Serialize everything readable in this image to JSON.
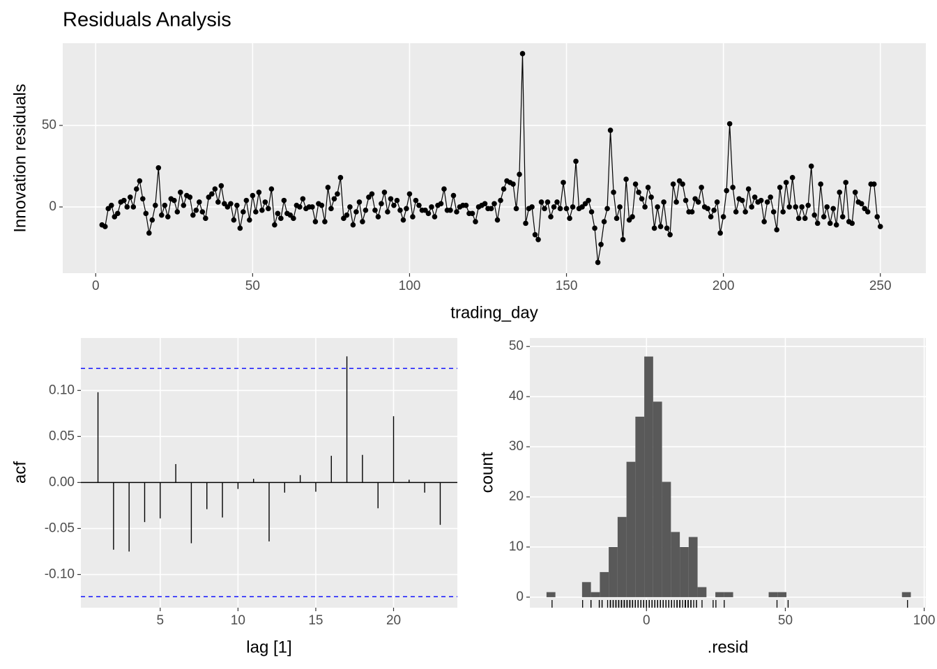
{
  "chart_data": [
    {
      "type": "line",
      "title": "Residuals Analysis",
      "xlabel": "trading_day",
      "ylabel": "Innovation residuals",
      "color": "#000000",
      "markers": true,
      "x": [
        2,
        3,
        4,
        5,
        6,
        7,
        8,
        9,
        10,
        11,
        12,
        13,
        14,
        15,
        16,
        17,
        18,
        19,
        20,
        21,
        22,
        23,
        24,
        25,
        26,
        27,
        28,
        29,
        30,
        31,
        32,
        33,
        34,
        35,
        36,
        37,
        38,
        39,
        40,
        41,
        42,
        43,
        44,
        45,
        46,
        47,
        48,
        49,
        50,
        51,
        52,
        53,
        54,
        55,
        56,
        57,
        58,
        59,
        60,
        61,
        62,
        63,
        64,
        65,
        66,
        67,
        68,
        69,
        70,
        71,
        72,
        73,
        74,
        75,
        76,
        77,
        78,
        79,
        80,
        81,
        82,
        83,
        84,
        85,
        86,
        87,
        88,
        89,
        90,
        91,
        92,
        93,
        94,
        95,
        96,
        97,
        98,
        99,
        100,
        101,
        102,
        103,
        104,
        105,
        106,
        107,
        108,
        109,
        110,
        111,
        112,
        113,
        114,
        115,
        116,
        117,
        118,
        119,
        120,
        121,
        122,
        123,
        124,
        125,
        126,
        127,
        128,
        129,
        130,
        131,
        132,
        133,
        134,
        135,
        136,
        137,
        138,
        139,
        140,
        141,
        142,
        143,
        144,
        145,
        146,
        147,
        148,
        149,
        150,
        151,
        152,
        153,
        154,
        155,
        156,
        157,
        158,
        159,
        160,
        161,
        162,
        163,
        164,
        165,
        166,
        167,
        168,
        169,
        170,
        171,
        172,
        173,
        174,
        175,
        176,
        177,
        178,
        179,
        180,
        181,
        182,
        183,
        184,
        185,
        186,
        187,
        188,
        189,
        190,
        191,
        192,
        193,
        194,
        195,
        196,
        197,
        198,
        199,
        200,
        201,
        202,
        203,
        204,
        205,
        206,
        207,
        208,
        209,
        210,
        211,
        212,
        213,
        214,
        215,
        216,
        217,
        218,
        219,
        220,
        221,
        222,
        223,
        224,
        225,
        226,
        227,
        228,
        229,
        230,
        231,
        232,
        233,
        234,
        235,
        236,
        237,
        238,
        239,
        240,
        241,
        242,
        243,
        244,
        245,
        246,
        247,
        248,
        249,
        250
      ],
      "values": [
        -11,
        -12,
        -1,
        1,
        -6,
        -4,
        3,
        4,
        0,
        6,
        0,
        11,
        16,
        5,
        -4,
        -16,
        -8,
        1,
        24,
        -5,
        1,
        -6,
        5,
        4,
        -3,
        9,
        1,
        7,
        6,
        -5,
        -2,
        3,
        -3,
        -7,
        6,
        8,
        11,
        3,
        13,
        2,
        0,
        2,
        -8,
        1,
        -13,
        -3,
        4,
        -8,
        7,
        -3,
        9,
        -2,
        3,
        -1,
        11,
        -11,
        -4,
        -7,
        4,
        -4,
        -5,
        -7,
        1,
        0,
        5,
        -1,
        0,
        0,
        -9,
        2,
        1,
        -9,
        12,
        -1,
        5,
        8,
        18,
        -7,
        -5,
        0,
        -11,
        -3,
        3,
        -9,
        -2,
        6,
        8,
        -2,
        -6,
        2,
        9,
        -3,
        5,
        1,
        4,
        -2,
        -8,
        -1,
        8,
        -6,
        4,
        1,
        -2,
        -2,
        -4,
        0,
        -6,
        1,
        2,
        11,
        -2,
        -2,
        7,
        -3,
        0,
        1,
        1,
        -4,
        -4,
        -9,
        0,
        1,
        2,
        -1,
        -1,
        2,
        -8,
        4,
        11,
        16,
        15,
        14,
        -1,
        20,
        94,
        -10,
        -1,
        0,
        -17,
        -20,
        3,
        -1,
        3,
        -6,
        0,
        3,
        -1,
        15,
        -1,
        -7,
        0,
        28,
        -1,
        0,
        2,
        4,
        -3,
        -13,
        -34,
        -23,
        -9,
        -1,
        47,
        9,
        -7,
        0,
        -20,
        17,
        -8,
        -6,
        14,
        9,
        5,
        0,
        12,
        6,
        -13,
        0,
        -12,
        3,
        -13,
        -17,
        14,
        3,
        16,
        14,
        4,
        -3,
        -3,
        5,
        3,
        12,
        0,
        -1,
        -6,
        -2,
        3,
        -16,
        -6,
        10,
        51,
        12,
        -3,
        5,
        4,
        -3,
        11,
        0,
        6,
        3,
        4,
        -9,
        3,
        6,
        -3,
        -14,
        12,
        -3,
        15,
        0,
        18,
        0,
        -7,
        0,
        -7,
        1,
        25,
        -5,
        -10,
        14,
        -6,
        0,
        -10,
        -1,
        -11,
        9,
        -6,
        15,
        -9,
        -10,
        9,
        3,
        2,
        -1,
        -3,
        14,
        14,
        -6,
        -12
      ],
      "xlim": [
        -10.5,
        264.5
      ],
      "xticks": [
        0,
        50,
        100,
        150,
        200,
        250
      ],
      "ylim": [
        -40.6,
        100.4
      ],
      "yticks": [
        0,
        50
      ],
      "grid": true
    },
    {
      "type": "stem",
      "xlabel": "lag [1]",
      "ylabel": "acf",
      "color": "#000000",
      "x": [
        1,
        2,
        3,
        4,
        5,
        6,
        7,
        8,
        9,
        10,
        11,
        12,
        13,
        14,
        15,
        16,
        17,
        18,
        19,
        20,
        21,
        22,
        23
      ],
      "values": [
        0.098,
        -0.073,
        -0.075,
        -0.043,
        -0.039,
        0.02,
        -0.066,
        -0.029,
        -0.038,
        -0.007,
        0.004,
        -0.064,
        -0.011,
        0.008,
        -0.01,
        0.029,
        0.137,
        0.03,
        -0.028,
        0.072,
        0.003,
        -0.011,
        -0.046
      ],
      "hlines": [
        0.124,
        -0.124
      ],
      "hline_color": "#0000ff",
      "xlim": [
        -0.1,
        24.1
      ],
      "xticks": [
        5,
        10,
        15,
        20
      ],
      "ylim": [
        -0.136,
        0.157
      ],
      "yticks": [
        {
          "value": -0.1,
          "label": "-0.10"
        },
        {
          "value": -0.05,
          "label": "-0.05"
        },
        {
          "value": 0,
          "label": "0.00"
        },
        {
          "value": 0.05,
          "label": "0.05"
        },
        {
          "value": 0.1,
          "label": "0.10"
        }
      ],
      "grid": true
    },
    {
      "type": "histogram",
      "xlabel": ".resid",
      "ylabel": "count",
      "color": "#595959",
      "rug": true,
      "bins": [
        -36,
        -32.8,
        -29.6,
        -26.4,
        -23.2,
        -20,
        -16.8,
        -13.6,
        -10.4,
        -7.2,
        -4,
        -0.8,
        2.4,
        5.6,
        8.8,
        12,
        15.2,
        18.4,
        21.6,
        24.8,
        28,
        31.2,
        34.4,
        37.6,
        40.8,
        44,
        47.2,
        50.4,
        53.6,
        56.8,
        60,
        63.2,
        66.4,
        69.6,
        72.8,
        76,
        79.2,
        82.4,
        85.6,
        88.8,
        92,
        95.2
      ],
      "values": [
        1,
        0,
        0,
        0,
        3,
        1,
        5,
        10,
        16,
        27,
        36,
        48,
        39,
        23,
        13,
        10,
        12,
        2,
        0,
        1,
        1,
        0,
        0,
        0,
        0,
        1,
        1,
        0,
        0,
        0,
        0,
        0,
        0,
        0,
        0,
        0,
        0,
        0,
        0,
        0,
        1
      ],
      "xlim": [
        -42,
        100.6
      ],
      "xticks": [
        0,
        50,
        100
      ],
      "ylim": [
        -2.1,
        51.7
      ],
      "yticks": [
        0,
        10,
        20,
        30,
        40,
        50
      ],
      "grid": true
    }
  ]
}
